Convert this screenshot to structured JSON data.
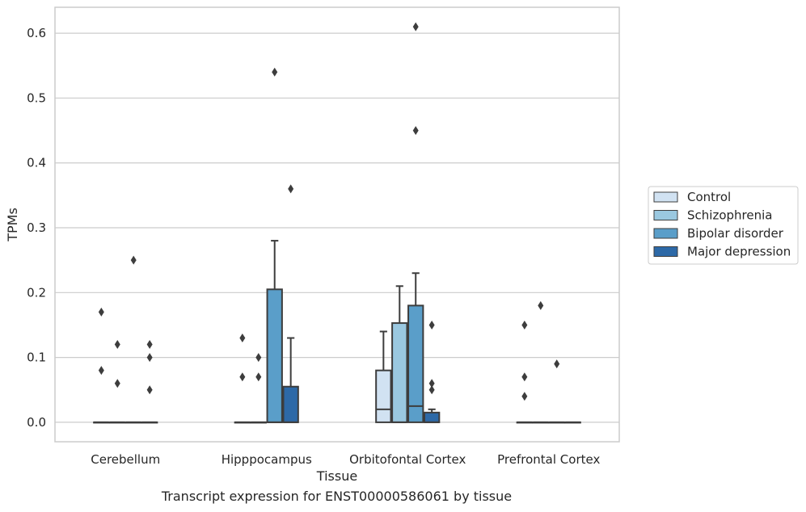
{
  "chart_data": {
    "type": "boxplot",
    "xlabel": "Tissue",
    "ylabel": "TPMs",
    "caption": "Transcript expression for ENST00000586061 by tissue",
    "ylim": [
      -0.03,
      0.64
    ],
    "yticks": [
      "0.0",
      "0.1",
      "0.2",
      "0.3",
      "0.4",
      "0.5",
      "0.6"
    ],
    "grid": true,
    "legend_position": "right",
    "categories": [
      "Cerebellum",
      "Hipppocampus",
      "Orbitofontal Cortex",
      "Prefrontal Cortex"
    ],
    "series": [
      {
        "name": "Control",
        "color": "#d1e2f2",
        "boxes": [
          {
            "q1": 0,
            "median": 0,
            "q3": 0,
            "whisker_low": 0,
            "whisker_high": 0,
            "outliers": [
              0.17,
              0.08
            ]
          },
          {
            "q1": 0,
            "median": 0,
            "q3": 0,
            "whisker_low": 0,
            "whisker_high": 0,
            "outliers": [
              0.13,
              0.07
            ]
          },
          {
            "q1": 0,
            "median": 0.02,
            "q3": 0.08,
            "whisker_low": 0,
            "whisker_high": 0.14,
            "outliers": []
          },
          {
            "q1": 0,
            "median": 0,
            "q3": 0,
            "whisker_low": 0,
            "whisker_high": 0,
            "outliers": [
              0.15,
              0.07,
              0.04
            ]
          }
        ]
      },
      {
        "name": "Schizophrenia",
        "color": "#9ac8e0",
        "boxes": [
          {
            "q1": 0,
            "median": 0,
            "q3": 0,
            "whisker_low": 0,
            "whisker_high": 0,
            "outliers": [
              0.12,
              0.06
            ]
          },
          {
            "q1": 0,
            "median": 0,
            "q3": 0,
            "whisker_low": 0,
            "whisker_high": 0,
            "outliers": [
              0.1,
              0.07
            ]
          },
          {
            "q1": 0,
            "median": 0,
            "q3": 0.153,
            "whisker_low": 0,
            "whisker_high": 0.21,
            "outliers": []
          },
          {
            "q1": 0,
            "median": 0,
            "q3": 0,
            "whisker_low": 0,
            "whisker_high": 0,
            "outliers": [
              0.18
            ]
          }
        ]
      },
      {
        "name": "Bipolar disorder",
        "color": "#5a9ec9",
        "boxes": [
          {
            "q1": 0,
            "median": 0,
            "q3": 0,
            "whisker_low": 0,
            "whisker_high": 0,
            "outliers": [
              0.25
            ]
          },
          {
            "q1": 0,
            "median": 0,
            "q3": 0.205,
            "whisker_low": 0,
            "whisker_high": 0.28,
            "outliers": [
              0.54
            ]
          },
          {
            "q1": 0,
            "median": 0.025,
            "q3": 0.18,
            "whisker_low": 0,
            "whisker_high": 0.23,
            "outliers": [
              0.61,
              0.45
            ]
          },
          {
            "q1": 0,
            "median": 0,
            "q3": 0,
            "whisker_low": 0,
            "whisker_high": 0,
            "outliers": [
              0.09
            ]
          }
        ]
      },
      {
        "name": "Major depression",
        "color": "#2d69a7",
        "boxes": [
          {
            "q1": 0,
            "median": 0,
            "q3": 0,
            "whisker_low": 0,
            "whisker_high": 0,
            "outliers": [
              0.12,
              0.1,
              0.05
            ]
          },
          {
            "q1": 0,
            "median": 0,
            "q3": 0.055,
            "whisker_low": 0,
            "whisker_high": 0.13,
            "outliers": [
              0.36
            ]
          },
          {
            "q1": 0,
            "median": 0,
            "q3": 0.015,
            "whisker_low": 0,
            "whisker_high": 0.02,
            "outliers": [
              0.15,
              0.06,
              0.05
            ]
          },
          {
            "q1": 0,
            "median": 0,
            "q3": 0,
            "whisker_low": 0,
            "whisker_high": 0,
            "outliers": []
          }
        ]
      }
    ]
  }
}
